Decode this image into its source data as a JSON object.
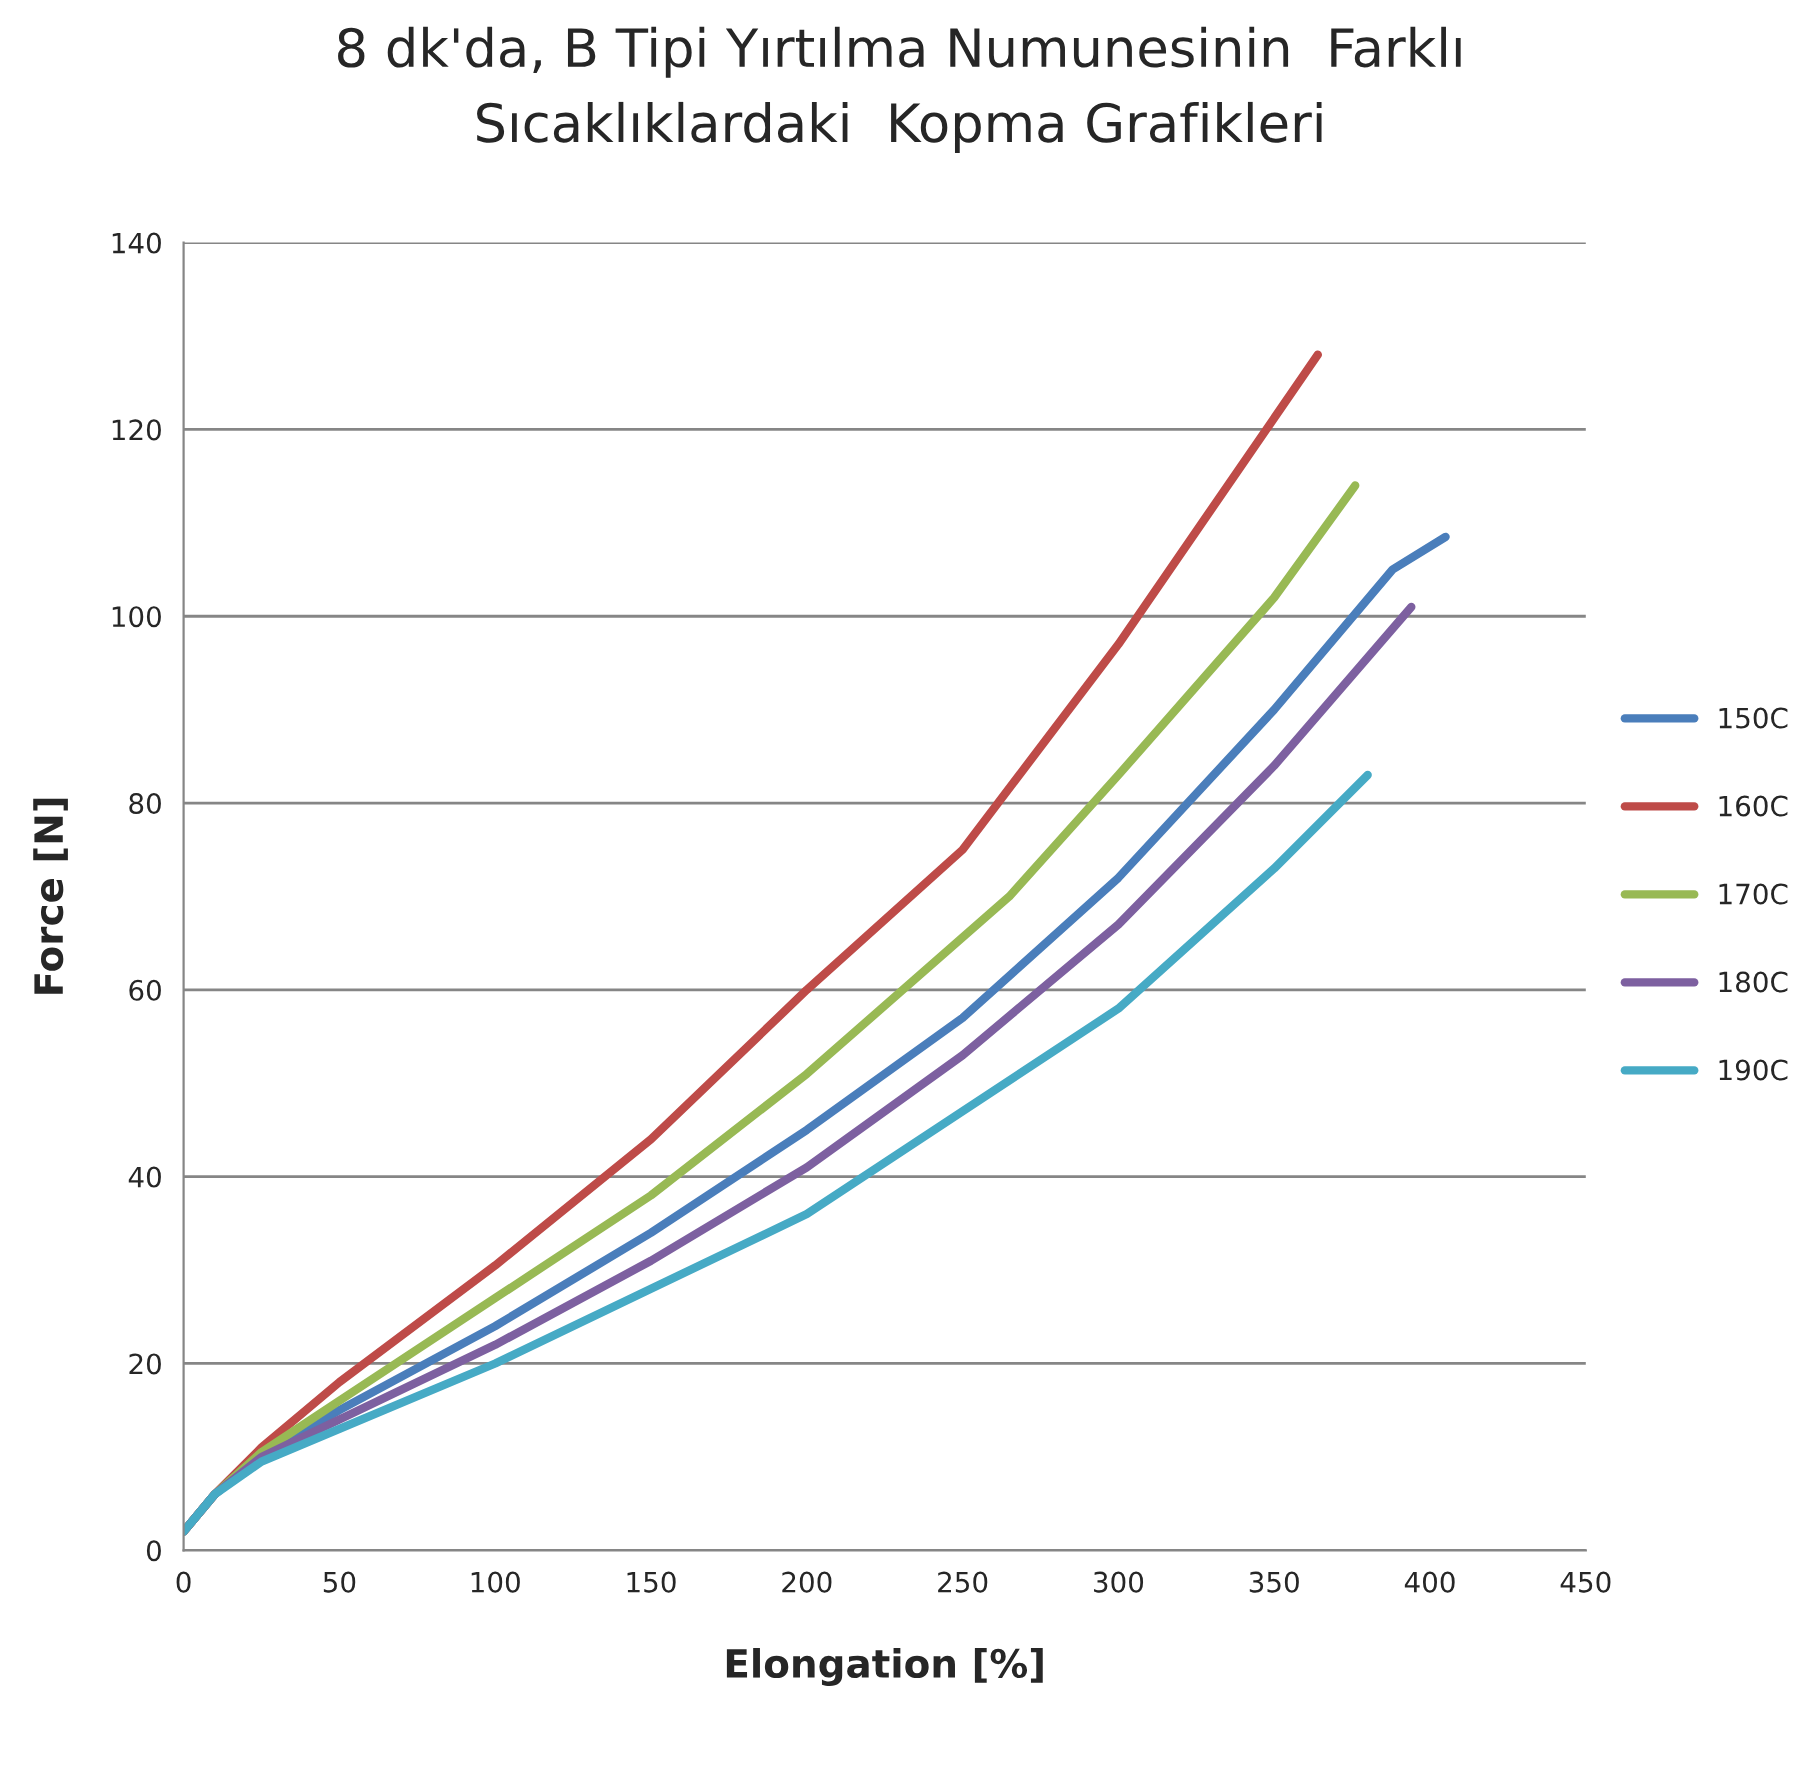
{
  "chart_data": {
    "type": "line",
    "title": "8 dk'da, B Tipi Yırtılma Numunesinin  Farklı\nSıcaklıklardaki  Kopma Grafikleri",
    "xlabel": "Elongation [%]",
    "ylabel": "Force [N]",
    "xlim": [
      0,
      450
    ],
    "xticks": [
      0,
      50,
      100,
      150,
      200,
      250,
      300,
      350,
      400,
      450
    ],
    "ylim": [
      0,
      140
    ],
    "yticks": [
      0,
      20,
      40,
      60,
      80,
      100,
      120,
      140
    ],
    "grid": "y",
    "legend": "right",
    "marker": "none",
    "line_style": "solid",
    "series": [
      {
        "name": "150C",
        "color": "#4a7ebb",
        "x": [
          0,
          10,
          25,
          50,
          100,
          150,
          200,
          250,
          300,
          350,
          388,
          405
        ],
        "values": [
          2,
          6,
          10,
          15,
          24,
          34,
          45,
          57,
          72,
          90,
          105,
          108.5
        ]
      },
      {
        "name": "160C",
        "color": "#be4b48",
        "x": [
          0,
          10,
          25,
          50,
          100,
          150,
          200,
          250,
          300,
          364
        ],
        "values": [
          2,
          6,
          11,
          18,
          30.5,
          44,
          60,
          75,
          97,
          128
        ]
      },
      {
        "name": "170C",
        "color": "#98b954",
        "x": [
          0,
          10,
          25,
          50,
          100,
          150,
          200,
          265,
          300,
          350,
          376
        ],
        "values": [
          2,
          6,
          10.5,
          16,
          27,
          38,
          51,
          70,
          83,
          102,
          114
        ]
      },
      {
        "name": "180C",
        "color": "#7d60a0",
        "x": [
          0,
          10,
          25,
          50,
          100,
          150,
          200,
          250,
          300,
          350,
          394
        ],
        "values": [
          2,
          6,
          10,
          14,
          22,
          31,
          41,
          53,
          67,
          84,
          101
        ]
      },
      {
        "name": "190C",
        "color": "#46aac5",
        "x": [
          0,
          10,
          25,
          50,
          100,
          150,
          200,
          250,
          300,
          350,
          380
        ],
        "values": [
          2,
          6,
          9.5,
          13,
          20,
          28,
          36,
          47,
          58,
          73,
          83
        ]
      }
    ]
  }
}
